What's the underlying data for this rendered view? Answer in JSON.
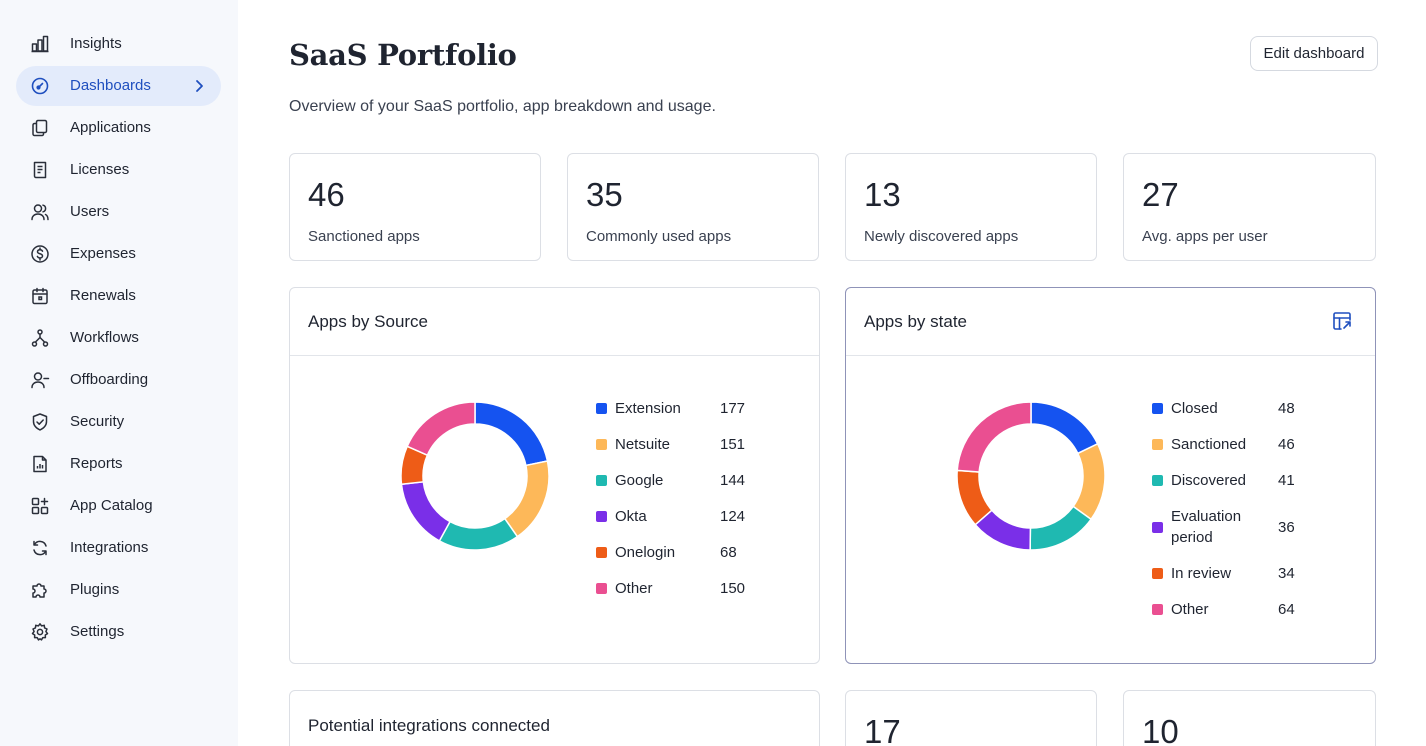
{
  "sidebar": {
    "items": [
      {
        "label": "Insights",
        "icon": "bar-chart-icon"
      },
      {
        "label": "Dashboards",
        "icon": "gauge-icon",
        "active": true
      },
      {
        "label": "Applications",
        "icon": "copy-icon"
      },
      {
        "label": "Licenses",
        "icon": "license-icon"
      },
      {
        "label": "Users",
        "icon": "users-icon"
      },
      {
        "label": "Expenses",
        "icon": "dollar-icon"
      },
      {
        "label": "Renewals",
        "icon": "calendar-icon"
      },
      {
        "label": "Workflows",
        "icon": "workflow-icon"
      },
      {
        "label": "Offboarding",
        "icon": "user-minus-icon"
      },
      {
        "label": "Security",
        "icon": "shield-icon"
      },
      {
        "label": "Reports",
        "icon": "report-icon"
      },
      {
        "label": "App Catalog",
        "icon": "grid-plus-icon"
      },
      {
        "label": "Integrations",
        "icon": "refresh-icon"
      },
      {
        "label": "Plugins",
        "icon": "puzzle-icon"
      },
      {
        "label": "Settings",
        "icon": "gear-icon"
      }
    ]
  },
  "header": {
    "title": "SaaS Portfolio",
    "subtitle": "Overview of your SaaS portfolio, app breakdown and usage.",
    "edit_label": "Edit dashboard"
  },
  "stats": [
    {
      "value": "46",
      "label": "Sanctioned apps"
    },
    {
      "value": "35",
      "label": "Commonly used apps"
    },
    {
      "value": "13",
      "label": "Newly discovered apps"
    },
    {
      "value": "27",
      "label": "Avg. apps per user"
    }
  ],
  "panels": {
    "source": {
      "title": "Apps by Source"
    },
    "state": {
      "title": "Apps by state"
    },
    "integrations": {
      "title": "Potential integrations connected"
    }
  },
  "bottom_stats": [
    {
      "value": "17"
    },
    {
      "value": "10"
    }
  ],
  "colors": {
    "accent": "#1f4fbf",
    "blue": "#1553f0",
    "yellow": "#fdb859",
    "teal": "#1fb9b1",
    "purple": "#7a2fe8",
    "orange": "#ee5c17",
    "pink": "#ea4f91"
  },
  "chart_data": [
    {
      "type": "pie",
      "title": "Apps by Source",
      "categories": [
        "Extension",
        "Netsuite",
        "Google",
        "Okta",
        "Onelogin",
        "Other"
      ],
      "values": [
        177,
        151,
        144,
        124,
        68,
        150
      ],
      "colors": [
        "#1553f0",
        "#fdb859",
        "#1fb9b1",
        "#7a2fe8",
        "#ee5c17",
        "#ea4f91"
      ],
      "labels": [
        "Extension",
        "Netsuite",
        "Google",
        "Okta",
        "Onelogin",
        "Other"
      ],
      "display_values": [
        "177",
        "151",
        "144",
        "124",
        "68",
        "150"
      ]
    },
    {
      "type": "pie",
      "title": "Apps by state",
      "categories": [
        "Closed",
        "Sanctioned",
        "Discovered",
        "Evaluation period",
        "In review",
        "Other"
      ],
      "values": [
        48,
        46,
        41,
        36,
        34,
        64
      ],
      "colors": [
        "#1553f0",
        "#fdb859",
        "#1fb9b1",
        "#7a2fe8",
        "#ee5c17",
        "#ea4f91"
      ],
      "labels": [
        "Closed",
        "Sanctioned",
        "Discovered",
        "Evaluation\nperiod",
        "In review",
        "Other"
      ],
      "display_values": [
        "48",
        "46",
        "41",
        "36",
        "34",
        "64"
      ]
    }
  ]
}
